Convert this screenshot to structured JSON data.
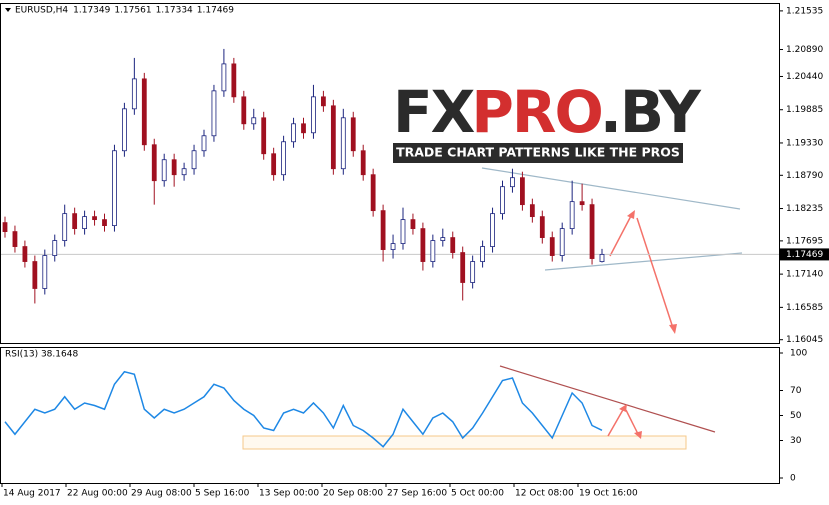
{
  "chart_data": [
    {
      "type": "candlestick",
      "symbol": "EURUSD,H4",
      "header_values": [
        "1.17349",
        "1.17561",
        "1.17334",
        "1.17469"
      ],
      "watermark": {
        "parts": [
          "FX",
          "PRO",
          ".BY"
        ],
        "tagline": "TRADE CHART PATTERNS LIKE THE PROS"
      },
      "up_color": "#1a237e",
      "down_color": "#a01020",
      "open": [
        1.18,
        1.1785,
        1.176,
        1.1735,
        1.169,
        1.1745,
        1.177,
        1.1815,
        1.179,
        1.181,
        1.1805,
        1.1795,
        1.192,
        1.199,
        1.204,
        1.193,
        1.187,
        1.1905,
        1.188,
        1.189,
        1.192,
        1.1945,
        1.202,
        1.2065,
        1.201,
        1.1965,
        1.1975,
        1.1915,
        1.188,
        1.1935,
        1.1965,
        1.195,
        1.201,
        1.1995,
        1.189,
        1.1975,
        1.192,
        1.188,
        1.182,
        1.1755,
        1.1765,
        1.1805,
        1.179,
        1.1735,
        1.177,
        1.1775,
        1.175,
        1.17,
        1.1735,
        1.176,
        1.1815,
        1.186,
        1.1875,
        1.183,
        1.181,
        1.1775,
        1.1745,
        1.179,
        1.1835,
        1.183,
        1.17349
      ],
      "high": [
        1.181,
        1.1795,
        1.177,
        1.1745,
        1.1755,
        1.178,
        1.183,
        1.1825,
        1.182,
        1.182,
        1.1815,
        1.193,
        1.2,
        1.2075,
        1.205,
        1.194,
        1.1915,
        1.1915,
        1.19,
        1.193,
        1.1955,
        1.203,
        1.209,
        1.2075,
        1.202,
        1.199,
        1.1985,
        1.1925,
        1.1945,
        1.1975,
        1.1975,
        1.203,
        1.202,
        1.2005,
        1.199,
        1.1985,
        1.193,
        1.189,
        1.183,
        1.178,
        1.1825,
        1.1815,
        1.18,
        1.178,
        1.179,
        1.1785,
        1.176,
        1.1745,
        1.177,
        1.1825,
        1.187,
        1.189,
        1.1885,
        1.184,
        1.182,
        1.1785,
        1.18,
        1.187,
        1.1865,
        1.184,
        1.17561
      ],
      "low": [
        1.1775,
        1.175,
        1.1725,
        1.1665,
        1.168,
        1.1735,
        1.176,
        1.178,
        1.178,
        1.1795,
        1.1785,
        1.1785,
        1.191,
        1.198,
        1.192,
        1.183,
        1.186,
        1.186,
        1.187,
        1.188,
        1.191,
        1.1935,
        1.201,
        1.2,
        1.1955,
        1.1955,
        1.1905,
        1.187,
        1.187,
        1.1925,
        1.194,
        1.194,
        1.1985,
        1.188,
        1.188,
        1.191,
        1.187,
        1.181,
        1.1735,
        1.174,
        1.1755,
        1.178,
        1.172,
        1.1725,
        1.176,
        1.174,
        1.167,
        1.169,
        1.1725,
        1.175,
        1.1805,
        1.185,
        1.182,
        1.18,
        1.1765,
        1.1735,
        1.1735,
        1.178,
        1.182,
        1.173,
        1.17334
      ],
      "close": [
        1.1785,
        1.176,
        1.1735,
        1.169,
        1.1745,
        1.177,
        1.1815,
        1.179,
        1.181,
        1.1805,
        1.1795,
        1.192,
        1.199,
        1.204,
        1.193,
        1.187,
        1.1905,
        1.188,
        1.189,
        1.192,
        1.1945,
        1.202,
        1.2065,
        1.201,
        1.1965,
        1.1975,
        1.1915,
        1.188,
        1.1935,
        1.1965,
        1.195,
        1.201,
        1.1995,
        1.189,
        1.1975,
        1.192,
        1.188,
        1.182,
        1.1755,
        1.1765,
        1.1805,
        1.179,
        1.1735,
        1.177,
        1.1775,
        1.175,
        1.17,
        1.1735,
        1.176,
        1.1815,
        1.186,
        1.1875,
        1.183,
        1.181,
        1.1775,
        1.1745,
        1.179,
        1.1835,
        1.183,
        1.174,
        1.17469
      ],
      "ylim": [
        1.1599,
        1.2165
      ],
      "yticks": [
        1.21535,
        {
          "value": 1.2089,
          "label": "1.20890"
        },
        {
          "value": 1.2044,
          "label": "1.20440"
        },
        1.19885,
        {
          "value": 1.1933,
          "label": "1.19330"
        },
        {
          "value": 1.1879,
          "label": "1.18790"
        },
        1.18235,
        1.17695,
        {
          "value": 1.1714,
          "label": "1.17140"
        },
        1.16585,
        1.16045
      ]
    },
    {
      "type": "line",
      "title": "RSI(13) 38.1648",
      "color": "#1e88e5",
      "values": [
        45,
        35,
        45,
        55,
        52,
        55,
        65,
        55,
        60,
        58,
        55,
        75,
        85,
        83,
        55,
        48,
        55,
        52,
        55,
        60,
        65,
        75,
        72,
        62,
        55,
        50,
        40,
        38,
        52,
        55,
        52,
        60,
        52,
        40,
        58,
        42,
        38,
        32,
        25,
        35,
        55,
        45,
        35,
        48,
        52,
        45,
        32,
        40,
        52,
        65,
        78,
        80,
        60,
        52,
        42,
        32,
        50,
        68,
        60,
        42,
        38.1648
      ],
      "ylim": [
        -4,
        104
      ],
      "yticks": [
        100,
        70,
        50,
        30,
        0
      ],
      "x_labels": [
        "14 Aug 2017",
        "22 Aug 00:00",
        "29 Aug 08:00",
        "5 Sep 16:00",
        "13 Sep 00:00",
        "20 Sep 08:00",
        "27 Sep 16:00",
        "5 Oct 00:00",
        "12 Oct 08:00",
        "19 Oct 16:00"
      ]
    }
  ]
}
